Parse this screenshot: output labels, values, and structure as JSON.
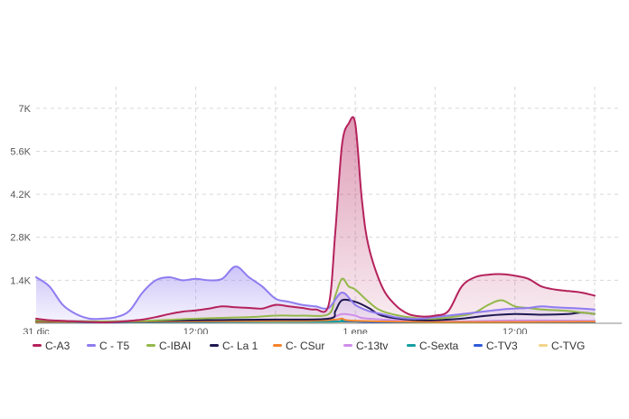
{
  "chart_data": {
    "type": "area",
    "x_ticks": [
      "31 dic",
      "12:00",
      "1 ene",
      "12:00"
    ],
    "y_ticks": [
      "1.4K",
      "2.8K",
      "4.2K",
      "5.6K",
      "7K"
    ],
    "y_tick_values": [
      1400,
      2800,
      4200,
      5600,
      7000
    ],
    "ylim": [
      0,
      7700
    ],
    "x_range_hours": [
      0,
      42
    ],
    "x_tick_hours": [
      0,
      12,
      24,
      36
    ],
    "grid": true,
    "legend_position": "bottom",
    "series": [
      {
        "name": "C-A3",
        "color": "#b5225c",
        "filled": true,
        "points": [
          [
            0,
            150
          ],
          [
            1,
            100
          ],
          [
            2,
            80
          ],
          [
            3,
            60
          ],
          [
            4,
            40
          ],
          [
            5,
            30
          ],
          [
            6,
            40
          ],
          [
            7,
            80
          ],
          [
            8,
            120
          ],
          [
            9,
            200
          ],
          [
            10,
            300
          ],
          [
            11,
            380
          ],
          [
            12,
            420
          ],
          [
            13,
            480
          ],
          [
            14,
            550
          ],
          [
            15,
            520
          ],
          [
            16,
            500
          ],
          [
            17,
            480
          ],
          [
            18,
            600
          ],
          [
            19,
            550
          ],
          [
            20,
            500
          ],
          [
            21,
            450
          ],
          [
            22,
            600
          ],
          [
            22.5,
            3000
          ],
          [
            23,
            5800
          ],
          [
            23.5,
            6500
          ],
          [
            24,
            6500
          ],
          [
            24.5,
            4000
          ],
          [
            25,
            2500
          ],
          [
            26,
            1200
          ],
          [
            27,
            600
          ],
          [
            28,
            300
          ],
          [
            29,
            220
          ],
          [
            30,
            250
          ],
          [
            31,
            400
          ],
          [
            32,
            1200
          ],
          [
            33,
            1500
          ],
          [
            34,
            1580
          ],
          [
            35,
            1600
          ],
          [
            36,
            1550
          ],
          [
            37,
            1450
          ],
          [
            38,
            1200
          ],
          [
            39,
            1100
          ],
          [
            40,
            1050
          ],
          [
            41,
            1000
          ],
          [
            42,
            900
          ]
        ]
      },
      {
        "name": "C - T5",
        "color": "#8f7cf0",
        "filled": true,
        "points": [
          [
            0,
            1500
          ],
          [
            1,
            1200
          ],
          [
            2,
            600
          ],
          [
            3,
            300
          ],
          [
            4,
            150
          ],
          [
            5,
            150
          ],
          [
            6,
            200
          ],
          [
            7,
            400
          ],
          [
            8,
            1000
          ],
          [
            9,
            1400
          ],
          [
            10,
            1500
          ],
          [
            11,
            1400
          ],
          [
            12,
            1450
          ],
          [
            13,
            1400
          ],
          [
            14,
            1450
          ],
          [
            15,
            1850
          ],
          [
            16,
            1500
          ],
          [
            17,
            1200
          ],
          [
            18,
            800
          ],
          [
            19,
            700
          ],
          [
            20,
            600
          ],
          [
            21,
            550
          ],
          [
            22,
            500
          ],
          [
            23,
            1000
          ],
          [
            24,
            600
          ],
          [
            25,
            400
          ],
          [
            26,
            300
          ],
          [
            27,
            200
          ],
          [
            28,
            150
          ],
          [
            29,
            150
          ],
          [
            30,
            200
          ],
          [
            31,
            250
          ],
          [
            32,
            300
          ],
          [
            33,
            350
          ],
          [
            34,
            400
          ],
          [
            35,
            450
          ],
          [
            36,
            480
          ],
          [
            37,
            500
          ],
          [
            38,
            550
          ],
          [
            39,
            520
          ],
          [
            40,
            500
          ],
          [
            41,
            480
          ],
          [
            42,
            450
          ]
        ]
      },
      {
        "name": "C-IBAI",
        "color": "#94b84a",
        "filled": false,
        "points": [
          [
            0,
            100
          ],
          [
            4,
            60
          ],
          [
            8,
            80
          ],
          [
            12,
            150
          ],
          [
            16,
            200
          ],
          [
            18,
            250
          ],
          [
            20,
            250
          ],
          [
            22,
            300
          ],
          [
            22.5,
            900
          ],
          [
            23,
            1450
          ],
          [
            23.5,
            1200
          ],
          [
            24,
            1100
          ],
          [
            25,
            700
          ],
          [
            26,
            400
          ],
          [
            28,
            200
          ],
          [
            30,
            150
          ],
          [
            32,
            250
          ],
          [
            33,
            350
          ],
          [
            34,
            600
          ],
          [
            35,
            750
          ],
          [
            36,
            550
          ],
          [
            37,
            500
          ],
          [
            38,
            450
          ],
          [
            40,
            400
          ],
          [
            42,
            300
          ]
        ]
      },
      {
        "name": "C- La 1",
        "color": "#1d1850",
        "filled": false,
        "points": [
          [
            0,
            80
          ],
          [
            6,
            60
          ],
          [
            12,
            100
          ],
          [
            18,
            120
          ],
          [
            22,
            150
          ],
          [
            22.5,
            400
          ],
          [
            23,
            750
          ],
          [
            24,
            700
          ],
          [
            25,
            500
          ],
          [
            26,
            250
          ],
          [
            28,
            120
          ],
          [
            30,
            100
          ],
          [
            32,
            150
          ],
          [
            34,
            250
          ],
          [
            36,
            300
          ],
          [
            38,
            280
          ],
          [
            40,
            300
          ],
          [
            41,
            350
          ],
          [
            42,
            300
          ]
        ]
      },
      {
        "name": "C- CSur",
        "color": "#f5832b",
        "filled": false,
        "points": [
          [
            0,
            40
          ],
          [
            10,
            60
          ],
          [
            20,
            80
          ],
          [
            22.5,
            120
          ],
          [
            23,
            150
          ],
          [
            24,
            80
          ],
          [
            30,
            40
          ],
          [
            42,
            50
          ]
        ]
      },
      {
        "name": "C-13tv",
        "color": "#cf8ee8",
        "filled": false,
        "points": [
          [
            0,
            60
          ],
          [
            10,
            70
          ],
          [
            20,
            100
          ],
          [
            22,
            150
          ],
          [
            23,
            300
          ],
          [
            24,
            250
          ],
          [
            25,
            150
          ],
          [
            30,
            60
          ],
          [
            36,
            90
          ],
          [
            42,
            80
          ]
        ]
      },
      {
        "name": "C-Sexta",
        "color": "#169ea0",
        "filled": false,
        "points": [
          [
            0,
            30
          ],
          [
            10,
            40
          ],
          [
            22,
            50
          ],
          [
            23,
            100
          ],
          [
            24,
            70
          ],
          [
            30,
            30
          ],
          [
            42,
            40
          ]
        ]
      },
      {
        "name": "C-TV3",
        "color": "#2f5bd8",
        "filled": false,
        "points": [
          [
            0,
            20
          ],
          [
            12,
            30
          ],
          [
            23,
            60
          ],
          [
            26,
            30
          ],
          [
            42,
            30
          ]
        ]
      },
      {
        "name": "C-TVG",
        "color": "#f2d48a",
        "filled": false,
        "points": [
          [
            0,
            15
          ],
          [
            12,
            20
          ],
          [
            23,
            40
          ],
          [
            26,
            20
          ],
          [
            42,
            20
          ]
        ]
      }
    ]
  }
}
